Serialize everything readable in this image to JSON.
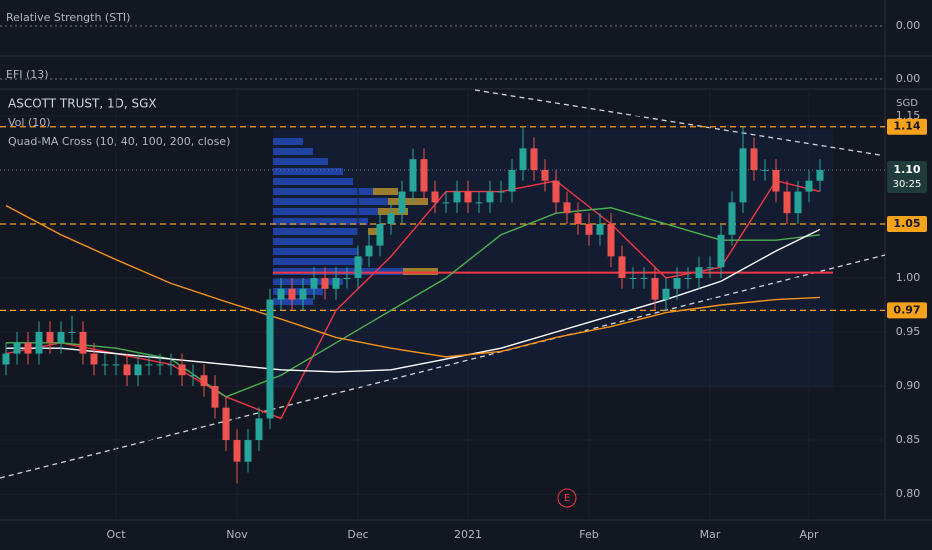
{
  "chart_data": [
    {
      "type": "indicator",
      "title": "Relative Strength (STI)",
      "yticks": [
        {
          "value": 0,
          "label": "0.00"
        }
      ]
    },
    {
      "type": "indicator",
      "title": "EFI (13)",
      "yticks": [
        {
          "value": 0,
          "label": "0.00"
        }
      ]
    },
    {
      "type": "candlestick",
      "title": "ASCOTT TRUST, 1D, SGX",
      "indicators": [
        "Vol (10)",
        "Quad-MA Cross (10, 40, 100, 200, close)"
      ],
      "currency": "SGD",
      "categories": [
        null,
        null,
        null,
        null,
        null,
        null,
        null,
        null,
        null,
        null,
        "Oct",
        null,
        null,
        null,
        null,
        null,
        null,
        null,
        null,
        null,
        null,
        "Nov",
        null,
        null,
        null,
        null,
        null,
        null,
        null,
        null,
        null,
        null,
        "Dec",
        null,
        null,
        null,
        null,
        null,
        null,
        null,
        null,
        null,
        "2021",
        null,
        null,
        null,
        null,
        null,
        null,
        null,
        null,
        null,
        null,
        "Feb",
        null,
        null,
        null,
        null,
        null,
        null,
        null,
        null,
        null,
        null,
        "Mar",
        null,
        null,
        null,
        null,
        null,
        null,
        null,
        null,
        "Apr",
        null
      ],
      "open": [
        0.92,
        0.93,
        0.94,
        0.93,
        0.95,
        0.94,
        0.95,
        0.95,
        0.93,
        0.92,
        0.92,
        0.92,
        0.91,
        0.92,
        0.92,
        0.92,
        0.92,
        0.91,
        0.91,
        0.9,
        0.88,
        0.85,
        0.83,
        0.85,
        0.87,
        0.98,
        0.99,
        0.98,
        0.99,
        1.0,
        0.99,
        1.0,
        1.0,
        1.02,
        1.03,
        1.05,
        1.06,
        1.08,
        1.11,
        1.08,
        1.07,
        1.07,
        1.08,
        1.07,
        1.07,
        1.08,
        1.08,
        1.1,
        1.12,
        1.1,
        1.09,
        1.07,
        1.06,
        1.05,
        1.04,
        1.05,
        1.02,
        1.0,
        1.0,
        1.0,
        0.98,
        0.99,
        1.0,
        1.0,
        1.01,
        1.01,
        1.04,
        1.07,
        1.12,
        1.1,
        1.1,
        1.08,
        1.06,
        1.08,
        1.09
      ],
      "high": [
        0.94,
        0.95,
        0.95,
        0.96,
        0.96,
        0.96,
        0.965,
        0.96,
        0.94,
        0.93,
        0.93,
        0.93,
        0.93,
        0.93,
        0.93,
        0.93,
        0.93,
        0.92,
        0.92,
        0.91,
        0.89,
        0.86,
        0.86,
        0.88,
        0.99,
        1.0,
        1.0,
        1.0,
        1.01,
        1.01,
        1.01,
        1.01,
        1.03,
        1.04,
        1.06,
        1.07,
        1.09,
        1.12,
        1.12,
        1.09,
        1.08,
        1.09,
        1.09,
        1.08,
        1.09,
        1.09,
        1.11,
        1.14,
        1.13,
        1.11,
        1.1,
        1.08,
        1.07,
        1.06,
        1.06,
        1.06,
        1.03,
        1.01,
        1.01,
        1.01,
        1.0,
        1.01,
        1.01,
        1.02,
        1.02,
        1.05,
        1.08,
        1.14,
        1.13,
        1.11,
        1.11,
        1.09,
        1.09,
        1.1,
        1.11
      ],
      "low": [
        0.91,
        0.92,
        0.92,
        0.92,
        0.93,
        0.93,
        0.94,
        0.92,
        0.91,
        0.91,
        0.91,
        0.9,
        0.9,
        0.91,
        0.91,
        0.91,
        0.9,
        0.9,
        0.89,
        0.87,
        0.84,
        0.81,
        0.82,
        0.84,
        0.86,
        0.97,
        0.97,
        0.97,
        0.98,
        0.98,
        0.98,
        0.99,
        0.99,
        1.01,
        1.02,
        1.04,
        1.05,
        1.07,
        1.07,
        1.06,
        1.06,
        1.06,
        1.06,
        1.06,
        1.06,
        1.07,
        1.07,
        1.09,
        1.09,
        1.08,
        1.06,
        1.05,
        1.04,
        1.03,
        1.03,
        1.01,
        0.99,
        0.99,
        0.99,
        0.97,
        0.97,
        0.98,
        0.99,
        0.99,
        1.0,
        1.0,
        1.03,
        1.06,
        1.09,
        1.09,
        1.07,
        1.05,
        1.05,
        1.07,
        1.08
      ],
      "close": [
        0.93,
        0.94,
        0.93,
        0.95,
        0.94,
        0.95,
        0.95,
        0.93,
        0.92,
        0.92,
        0.92,
        0.91,
        0.92,
        0.92,
        0.92,
        0.92,
        0.91,
        0.91,
        0.9,
        0.88,
        0.85,
        0.83,
        0.85,
        0.87,
        0.98,
        0.99,
        0.98,
        0.99,
        1.0,
        0.99,
        1.0,
        1.0,
        1.02,
        1.03,
        1.05,
        1.06,
        1.08,
        1.11,
        1.08,
        1.07,
        1.07,
        1.08,
        1.07,
        1.07,
        1.08,
        1.08,
        1.1,
        1.12,
        1.1,
        1.09,
        1.07,
        1.06,
        1.05,
        1.04,
        1.05,
        1.02,
        1.0,
        1.0,
        1.0,
        0.98,
        0.99,
        1.0,
        1.0,
        1.01,
        1.01,
        1.04,
        1.07,
        1.12,
        1.1,
        1.1,
        1.08,
        1.06,
        1.08,
        1.09,
        1.1
      ],
      "up_color": "#26a69a",
      "down_color": "#ef5350",
      "ma_series": [
        {
          "color": "#f23645",
          "x": [
            0,
            5,
            10,
            15,
            20,
            25,
            30,
            35,
            40,
            45,
            50,
            55,
            60,
            65,
            70,
            74
          ],
          "values": [
            0.93,
            0.94,
            0.93,
            0.92,
            0.89,
            0.87,
            0.97,
            1.02,
            1.08,
            1.08,
            1.09,
            1.05,
            1.0,
            1.01,
            1.09,
            1.08
          ]
        },
        {
          "color": "#4caf50",
          "x": [
            0,
            5,
            10,
            15,
            20,
            25,
            30,
            35,
            40,
            45,
            50,
            55,
            60,
            65,
            70,
            74
          ],
          "values": [
            0.94,
            0.94,
            0.935,
            0.925,
            0.89,
            0.91,
            0.94,
            0.97,
            1.0,
            1.04,
            1.06,
            1.065,
            1.05,
            1.035,
            1.035,
            1.04
          ]
        },
        {
          "color": "#ffffff",
          "x": [
            0,
            5,
            10,
            15,
            20,
            25,
            30,
            35,
            40,
            45,
            50,
            55,
            60,
            65,
            70,
            74
          ],
          "values": [
            0.935,
            0.935,
            0.93,
            0.925,
            0.92,
            0.915,
            0.913,
            0.915,
            0.925,
            0.935,
            0.95,
            0.965,
            0.98,
            0.997,
            1.025,
            1.045
          ]
        },
        {
          "color": "#f7931a",
          "x": [
            0,
            5,
            10,
            15,
            20,
            25,
            30,
            35,
            40,
            45,
            50,
            55,
            60,
            65,
            70,
            74
          ],
          "values": [
            1.067,
            1.04,
            1.017,
            0.995,
            0.978,
            0.962,
            0.945,
            0.935,
            0.927,
            0.932,
            0.945,
            0.955,
            0.968,
            0.975,
            0.98,
            0.982
          ]
        }
      ],
      "levels": [
        1.14,
        1.05,
        0.97
      ],
      "level_color": "#f7a21b",
      "support_level": 1.005,
      "support_color": "#f23645",
      "last_price": {
        "value": 1.1,
        "label": "1.10"
      },
      "countdown": "30:25",
      "events": [
        {
          "label": "E",
          "category": 51
        }
      ],
      "ylim": [
        0.776,
        1.174
      ],
      "yticks": [
        {
          "value": 0.8,
          "label": "0.80"
        },
        {
          "value": 0.85,
          "label": "0.85"
        },
        {
          "value": 0.9,
          "label": "0.90"
        },
        {
          "value": 0.95,
          "label": "0.95"
        },
        {
          "value": 1,
          "label": "1.00"
        },
        {
          "value": 1.15,
          "label": "1.15"
        }
      ],
      "grid": true
    }
  ]
}
